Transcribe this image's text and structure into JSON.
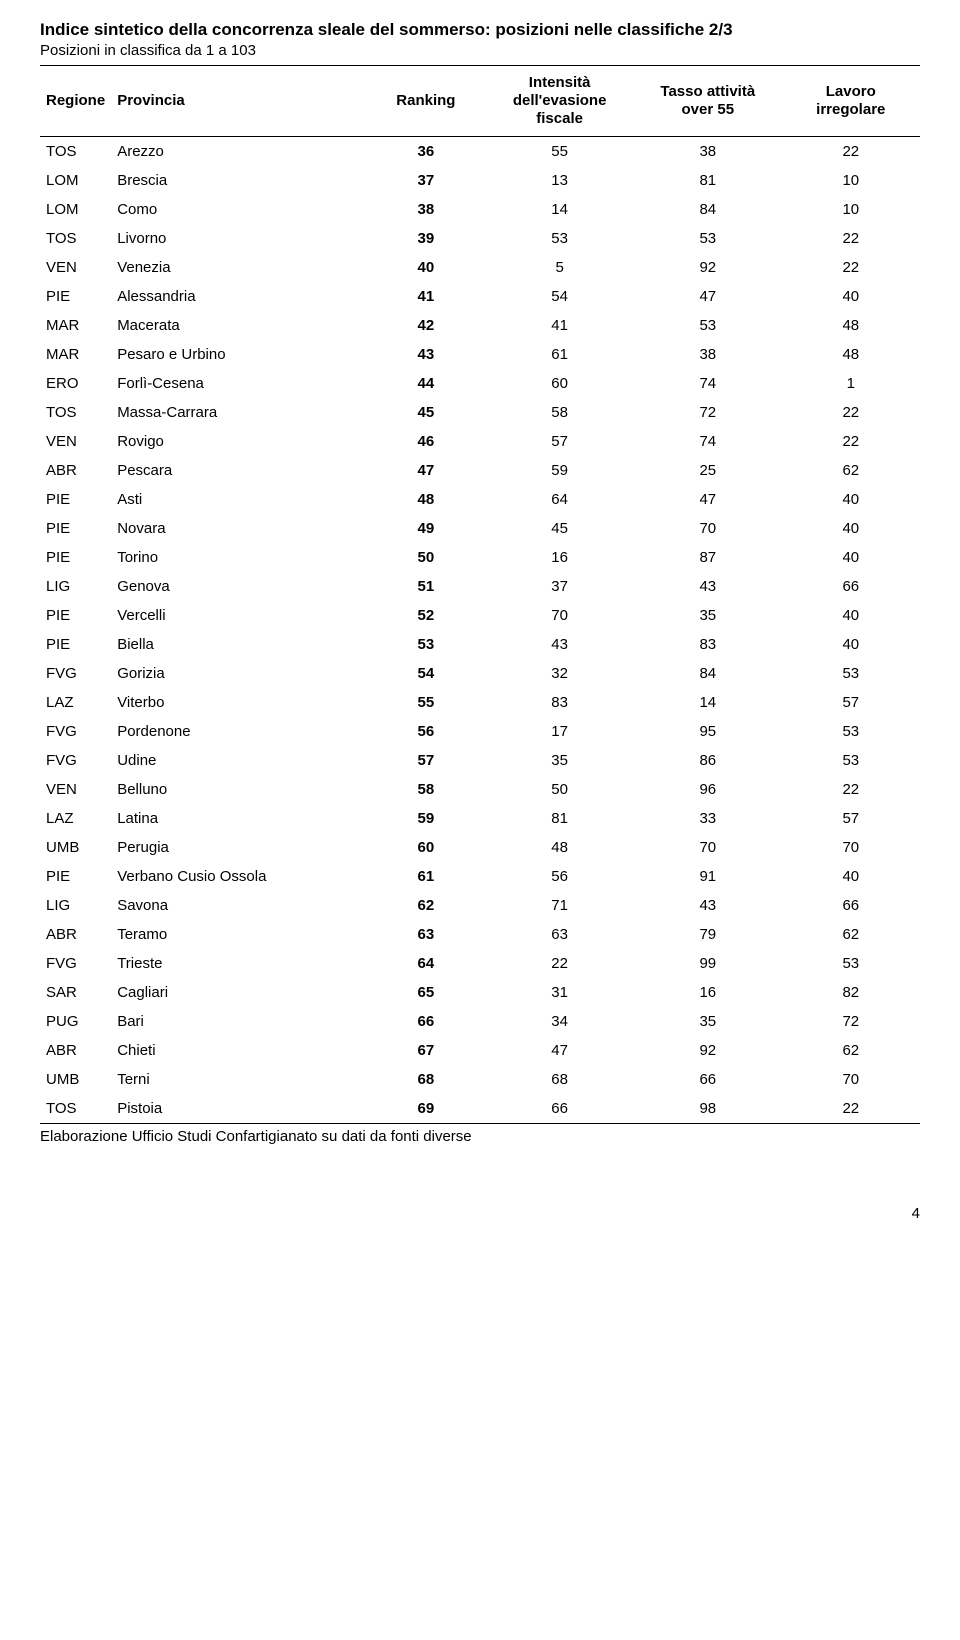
{
  "title": "Indice sintetico della concorrenza sleale del sommerso: posizioni nelle classifiche 2/3",
  "subtitle": "Posizioni in classifica da 1 a 103",
  "columns": {
    "regione": "Regione",
    "provincia": "Provincia",
    "ranking": "Ranking",
    "intensita": "Intensità\ndell'evasione\nfiscale",
    "tasso": "Tasso attività\nover 55",
    "lavoro": "Lavoro\nirregolare"
  },
  "rows": [
    {
      "reg": "TOS",
      "prov": "Arezzo",
      "rank": "36",
      "c1": "55",
      "c2": "38",
      "c3": "22"
    },
    {
      "reg": "LOM",
      "prov": "Brescia",
      "rank": "37",
      "c1": "13",
      "c2": "81",
      "c3": "10"
    },
    {
      "reg": "LOM",
      "prov": "Como",
      "rank": "38",
      "c1": "14",
      "c2": "84",
      "c3": "10"
    },
    {
      "reg": "TOS",
      "prov": "Livorno",
      "rank": "39",
      "c1": "53",
      "c2": "53",
      "c3": "22"
    },
    {
      "reg": "VEN",
      "prov": "Venezia",
      "rank": "40",
      "c1": "5",
      "c2": "92",
      "c3": "22"
    },
    {
      "reg": "PIE",
      "prov": "Alessandria",
      "rank": "41",
      "c1": "54",
      "c2": "47",
      "c3": "40"
    },
    {
      "reg": "MAR",
      "prov": "Macerata",
      "rank": "42",
      "c1": "41",
      "c2": "53",
      "c3": "48"
    },
    {
      "reg": "MAR",
      "prov": "Pesaro e Urbino",
      "rank": "43",
      "c1": "61",
      "c2": "38",
      "c3": "48"
    },
    {
      "reg": "ERO",
      "prov": "Forlì-Cesena",
      "rank": "44",
      "c1": "60",
      "c2": "74",
      "c3": "1"
    },
    {
      "reg": "TOS",
      "prov": "Massa-Carrara",
      "rank": "45",
      "c1": "58",
      "c2": "72",
      "c3": "22"
    },
    {
      "reg": "VEN",
      "prov": "Rovigo",
      "rank": "46",
      "c1": "57",
      "c2": "74",
      "c3": "22"
    },
    {
      "reg": "ABR",
      "prov": "Pescara",
      "rank": "47",
      "c1": "59",
      "c2": "25",
      "c3": "62"
    },
    {
      "reg": "PIE",
      "prov": "Asti",
      "rank": "48",
      "c1": "64",
      "c2": "47",
      "c3": "40"
    },
    {
      "reg": "PIE",
      "prov": "Novara",
      "rank": "49",
      "c1": "45",
      "c2": "70",
      "c3": "40"
    },
    {
      "reg": "PIE",
      "prov": "Torino",
      "rank": "50",
      "c1": "16",
      "c2": "87",
      "c3": "40"
    },
    {
      "reg": "LIG",
      "prov": "Genova",
      "rank": "51",
      "c1": "37",
      "c2": "43",
      "c3": "66"
    },
    {
      "reg": "PIE",
      "prov": "Vercelli",
      "rank": "52",
      "c1": "70",
      "c2": "35",
      "c3": "40"
    },
    {
      "reg": "PIE",
      "prov": "Biella",
      "rank": "53",
      "c1": "43",
      "c2": "83",
      "c3": "40"
    },
    {
      "reg": "FVG",
      "prov": "Gorizia",
      "rank": "54",
      "c1": "32",
      "c2": "84",
      "c3": "53"
    },
    {
      "reg": "LAZ",
      "prov": "Viterbo",
      "rank": "55",
      "c1": "83",
      "c2": "14",
      "c3": "57"
    },
    {
      "reg": "FVG",
      "prov": "Pordenone",
      "rank": "56",
      "c1": "17",
      "c2": "95",
      "c3": "53"
    },
    {
      "reg": "FVG",
      "prov": "Udine",
      "rank": "57",
      "c1": "35",
      "c2": "86",
      "c3": "53"
    },
    {
      "reg": "VEN",
      "prov": "Belluno",
      "rank": "58",
      "c1": "50",
      "c2": "96",
      "c3": "22"
    },
    {
      "reg": "LAZ",
      "prov": "Latina",
      "rank": "59",
      "c1": "81",
      "c2": "33",
      "c3": "57"
    },
    {
      "reg": "UMB",
      "prov": "Perugia",
      "rank": "60",
      "c1": "48",
      "c2": "70",
      "c3": "70"
    },
    {
      "reg": "PIE",
      "prov": "Verbano Cusio Ossola",
      "rank": "61",
      "c1": "56",
      "c2": "91",
      "c3": "40"
    },
    {
      "reg": "LIG",
      "prov": "Savona",
      "rank": "62",
      "c1": "71",
      "c2": "43",
      "c3": "66"
    },
    {
      "reg": "ABR",
      "prov": "Teramo",
      "rank": "63",
      "c1": "63",
      "c2": "79",
      "c3": "62"
    },
    {
      "reg": "FVG",
      "prov": "Trieste",
      "rank": "64",
      "c1": "22",
      "c2": "99",
      "c3": "53"
    },
    {
      "reg": "SAR",
      "prov": "Cagliari",
      "rank": "65",
      "c1": "31",
      "c2": "16",
      "c3": "82"
    },
    {
      "reg": "PUG",
      "prov": "Bari",
      "rank": "66",
      "c1": "34",
      "c2": "35",
      "c3": "72"
    },
    {
      "reg": "ABR",
      "prov": "Chieti",
      "rank": "67",
      "c1": "47",
      "c2": "92",
      "c3": "62"
    },
    {
      "reg": "UMB",
      "prov": "Terni",
      "rank": "68",
      "c1": "68",
      "c2": "66",
      "c3": "70"
    },
    {
      "reg": "TOS",
      "prov": "Pistoia",
      "rank": "69",
      "c1": "66",
      "c2": "98",
      "c3": "22"
    }
  ],
  "footnote": "Elaborazione Ufficio Studi Confartigianato su dati da fonti diverse",
  "pagenum": "4"
}
